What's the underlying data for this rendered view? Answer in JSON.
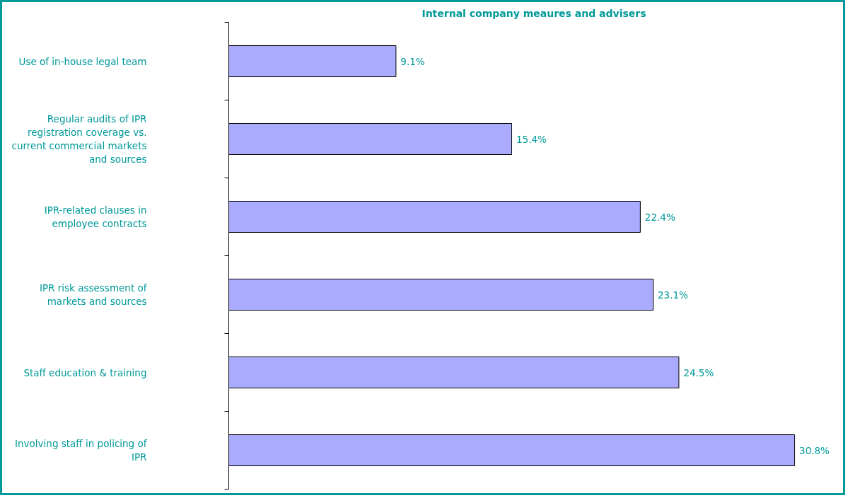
{
  "chart_data": {
    "type": "bar",
    "orientation": "horizontal",
    "title": "Internal company meaures and advisers",
    "categories": [
      "Use of in-house legal team",
      "Regular audits of IPR\nregistration coverage vs.\ncurrent commercial markets\nand sources",
      "IPR-related clauses in\nemployee contracts",
      "IPR risk assessment of\nmarkets and sources",
      "Staff education & training",
      "Involving staff in policing of\nIPR"
    ],
    "values": [
      9.1,
      15.4,
      22.4,
      23.1,
      24.5,
      30.8
    ],
    "value_labels": [
      "9.1%",
      "15.4%",
      "22.4%",
      "23.1%",
      "24.5%",
      "30.8%"
    ],
    "color": "#aaaaff",
    "grid": false
  }
}
